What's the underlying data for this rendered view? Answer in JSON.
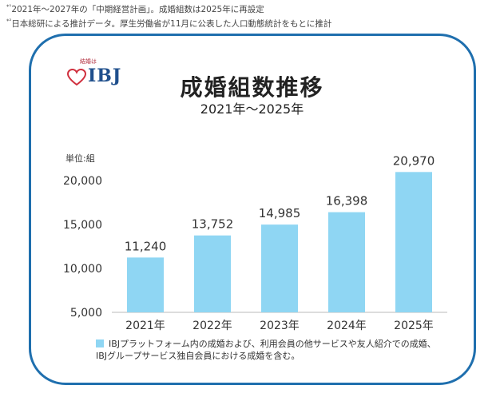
{
  "notes": {
    "note1_mark": "*¹",
    "note1_text": "2021年～2027年の「中期経営計画」。成婚組数は2025年に再設定",
    "note2_mark": "*²",
    "note2_text": "日本総研による推計データ。厚生労働省が11月に公表した人口動態統計をもとに推計"
  },
  "logo": {
    "small_text": "結婚は",
    "main_text": "IBJ",
    "heart_color": "#d0303e"
  },
  "chart_data": {
    "type": "bar",
    "title": "成婚組数推移",
    "subtitle": "2021年～2025年",
    "unit_label": "単位:組",
    "categories": [
      "2021年",
      "2022年",
      "2023年",
      "2024年",
      "2025年"
    ],
    "values": [
      11240,
      13752,
      14985,
      16398,
      20970
    ],
    "value_labels": [
      "11,240",
      "13,752",
      "14,985",
      "16,398",
      "20,970"
    ],
    "y_ticks": [
      5000,
      10000,
      15000,
      20000
    ],
    "y_tick_labels": [
      "5,000",
      "10,000",
      "15,000",
      "20,000"
    ],
    "ylim": [
      5000,
      21500
    ],
    "bar_color": "#8fd6f3",
    "grid": false,
    "legend_line1": "IBJプラットフォーム内の成婚および、利用会員の他サービスや友人紹介での成婚、",
    "legend_line2": "IBJグループサービス独自会員における成婚を含む。"
  }
}
